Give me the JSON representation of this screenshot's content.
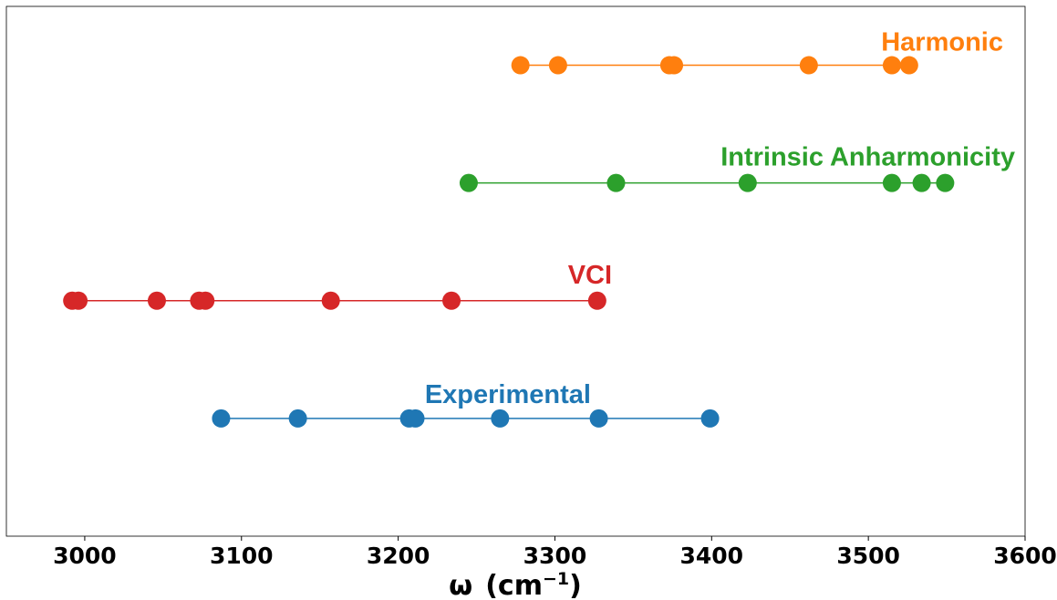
{
  "chart_data": {
    "type": "scatter",
    "title": "",
    "xlabel": "ω",
    "xlabel_unit_prefix": "(cm",
    "xlabel_unit_exponent": "−1",
    "xlabel_unit_suffix": ")",
    "ylabel": "",
    "xlim": [
      2950,
      3600
    ],
    "ylim": [
      0,
      4.5
    ],
    "xticks": [
      3000,
      3100,
      3200,
      3300,
      3400,
      3500,
      3600
    ],
    "xtick_labels": [
      "3000",
      "3100",
      "3200",
      "3300",
      "3400",
      "3500",
      "3600"
    ],
    "grid": false,
    "series": [
      {
        "name": "Harmonic",
        "color": "#ff7f0e",
        "y": 4,
        "x": [
          3278,
          3302,
          3373,
          3376,
          3462,
          3515,
          3526
        ]
      },
      {
        "name": "Intrinsic Anharmonicity",
        "color": "#2ca02c",
        "y": 3,
        "x": [
          3245,
          3339,
          3423,
          3515,
          3534,
          3549
        ]
      },
      {
        "name": "VCI",
        "color": "#d62728",
        "y": 2,
        "x": [
          2992,
          2996,
          3046,
          3073,
          3077,
          3157,
          3234,
          3327
        ]
      },
      {
        "name": "Experimental",
        "color": "#1f77b4",
        "y": 1,
        "x": [
          3087,
          3136,
          3207,
          3211,
          3265,
          3328,
          3399
        ]
      }
    ]
  }
}
